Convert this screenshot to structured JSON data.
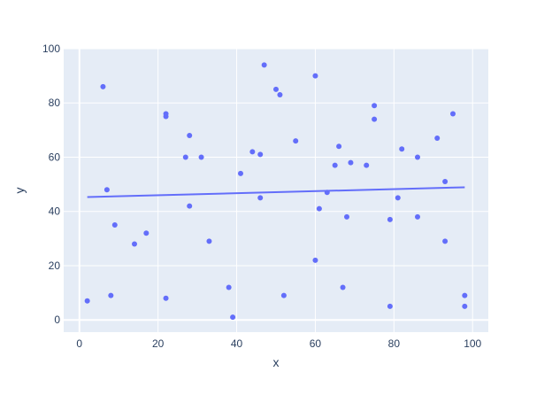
{
  "chart_data": {
    "type": "scatter",
    "xlabel": "x",
    "ylabel": "y",
    "xlim": [
      -4,
      104
    ],
    "ylim": [
      -4.5,
      100
    ],
    "x_ticks": [
      0,
      20,
      40,
      60,
      80,
      100
    ],
    "y_ticks": [
      0,
      20,
      40,
      60,
      80,
      100
    ],
    "grid": true,
    "colors": {
      "background": "#e5ecf6",
      "grid": "#ffffff",
      "marker": "#636efa",
      "line": "#636efa"
    },
    "series": [
      {
        "type": "scatter",
        "x": [
          2,
          6,
          7,
          8,
          9,
          14,
          17,
          22,
          22,
          22,
          27,
          28,
          28,
          31,
          33,
          38,
          39,
          41,
          44,
          46,
          46,
          47,
          50,
          51,
          52,
          55,
          60,
          60,
          61,
          63,
          65,
          66,
          67,
          68,
          69,
          73,
          75,
          75,
          79,
          79,
          81,
          82,
          86,
          86,
          91,
          93,
          93,
          95,
          98,
          98
        ],
        "y": [
          7,
          86,
          48,
          9,
          35,
          28,
          32,
          76,
          75,
          8,
          60,
          68,
          42,
          60,
          29,
          12,
          1,
          54,
          62,
          61,
          45,
          94,
          85,
          83,
          9,
          66,
          90,
          22,
          41,
          47,
          57,
          64,
          12,
          38,
          58,
          57,
          79,
          74,
          37,
          5,
          45,
          63,
          60,
          38,
          67,
          51,
          29,
          76,
          9,
          5
        ]
      },
      {
        "type": "line",
        "x": [
          2,
          98
        ],
        "y": [
          45.3,
          48.9
        ]
      }
    ]
  }
}
